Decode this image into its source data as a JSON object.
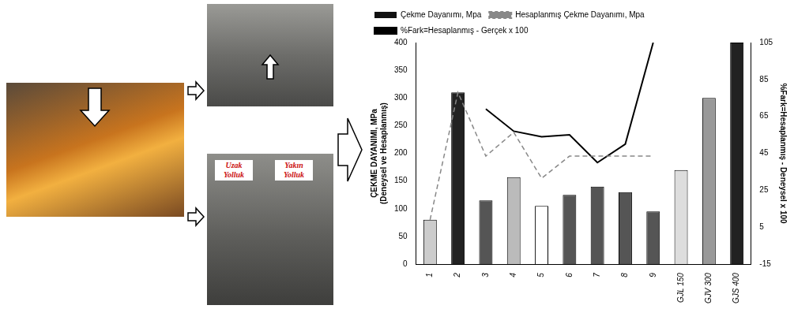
{
  "chart_data": {
    "type": "bar",
    "categories": [
      "1",
      "2",
      "3",
      "4",
      "5",
      "6",
      "7",
      "8",
      "9",
      "GJL 150",
      "GJV 300",
      "GJS 400"
    ],
    "ylabel": [
      "ÇEKME DAYANIMI, MPa",
      "(Deneysel ve Hesaplanmış)"
    ],
    "y2label": "%Fark=Hesaplanmış - Deneysel x 100",
    "ylim": [
      0,
      400
    ],
    "yticks": [
      0,
      50,
      100,
      150,
      200,
      250,
      300,
      350,
      400
    ],
    "y2lim": [
      -15,
      105
    ],
    "y2ticks": [
      -15,
      5,
      25,
      45,
      65,
      85,
      105
    ],
    "grid": false,
    "legend": "top",
    "series": [
      {
        "name": "Çekme Dayanımı, Mpa",
        "type": "bar",
        "color": "#111111",
        "colors": [
          "#cccccc",
          "#222222",
          "#555555",
          "#bbbbbb",
          "#ffffff",
          "#555555",
          "#555555",
          "#555555",
          "#555555",
          "#dddddd",
          "#999999",
          "#222222"
        ],
        "values": [
          80,
          310,
          115,
          157,
          105,
          125,
          140,
          130,
          95,
          170,
          300,
          400
        ]
      },
      {
        "name": "Hesaplanmış Çekme Dayanımı, Mpa",
        "type": "line",
        "line_style": "dashed",
        "marker": "none",
        "color": "#888888",
        "values": [
          80,
          310,
          195,
          238,
          155,
          195,
          195,
          195,
          195,
          null,
          null,
          null
        ]
      },
      {
        "name": "%Fark=Hesaplanmış - Gerçek x 100",
        "type": "line",
        "line_style": "solid",
        "marker": "none",
        "color": "#000000",
        "axis": "y2",
        "values": [
          null,
          null,
          69,
          57,
          54,
          55,
          40,
          50,
          105,
          null,
          null,
          null
        ]
      }
    ]
  },
  "photos": {
    "labels": [
      "Uzak Yolluk",
      "Yakın Yolluk"
    ]
  }
}
